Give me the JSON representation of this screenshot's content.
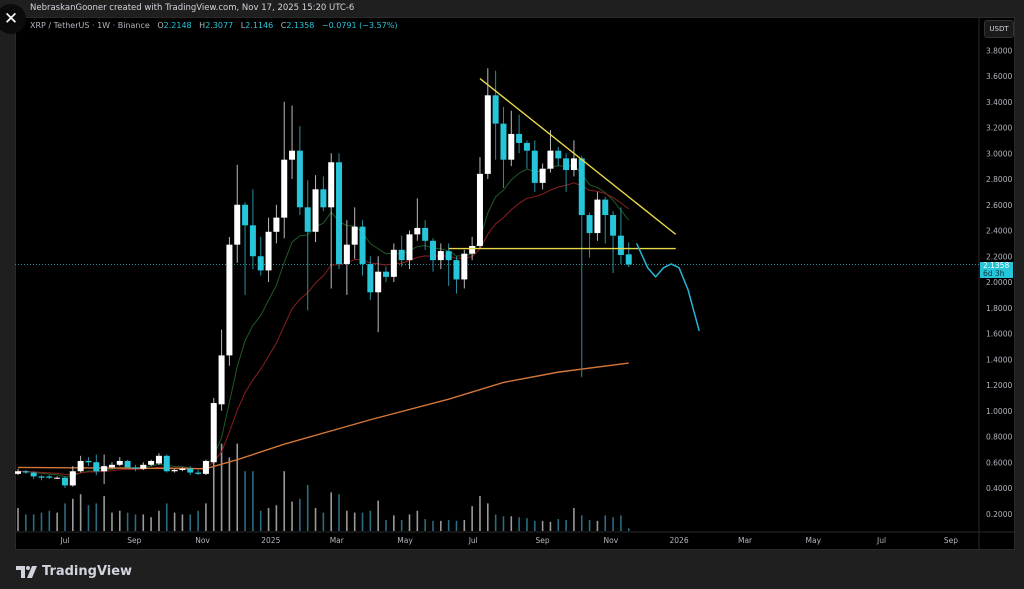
{
  "header": {
    "credit": "NebraskanGooner created with TradingView.com, Nov 17, 2025 15:20 UTC-6",
    "close_icon": "close-icon"
  },
  "legend": {
    "symbol": "XRP / TetherUS · 1W · Binance",
    "o_label": "O",
    "o": "2.2148",
    "h_label": "H",
    "h": "2.3077",
    "l_label": "L",
    "l": "2.1146",
    "c_label": "C",
    "c": "2.1358",
    "change": "−0.0791 (−3.57%)"
  },
  "price_axis": {
    "currency_button": "USDT",
    "last_price": "2.1358",
    "countdown": "6d 3h"
  },
  "footer": {
    "brand": "TradingView"
  },
  "colors": {
    "up": "#ffffff",
    "down": "#26c6da",
    "ema_fast": "#1e5a26",
    "ema_slow": "#8a1f1f",
    "ma_long": "#d2763a",
    "trendline": "#e6d84a",
    "projection": "#26b5d6",
    "volume_up": "#9a9a9a",
    "volume_down": "#2c6b80"
  },
  "chart_data": {
    "type": "candlestick",
    "symbol": "XRP / TetherUS",
    "interval": "1W",
    "ylim": [
      0.1,
      3.9
    ],
    "y_ticks": [
      "3.8000",
      "3.6000",
      "3.4000",
      "3.2000",
      "3.0000",
      "2.8000",
      "2.6000",
      "2.4000",
      "2.2000",
      "2.0000",
      "1.8000",
      "1.6000",
      "1.4000",
      "1.2000",
      "1.0000",
      "0.8000",
      "0.6000",
      "0.4000",
      "0.2000"
    ],
    "x_ticks": [
      {
        "label": "Jul",
        "date": "2024-07-01"
      },
      {
        "label": "Sep",
        "date": "2024-09-01"
      },
      {
        "label": "Nov",
        "date": "2024-11-01"
      },
      {
        "label": "2025",
        "date": "2025-01-01"
      },
      {
        "label": "Mar",
        "date": "2025-03-01"
      },
      {
        "label": "May",
        "date": "2025-05-01"
      },
      {
        "label": "Jul",
        "date": "2025-07-01"
      },
      {
        "label": "Sep",
        "date": "2025-09-01"
      },
      {
        "label": "Nov",
        "date": "2025-11-01"
      },
      {
        "label": "2026",
        "date": "2026-01-01"
      },
      {
        "label": "Mar",
        "date": "2026-03-01"
      },
      {
        "label": "May",
        "date": "2026-05-01"
      },
      {
        "label": "Jul",
        "date": "2026-07-01"
      },
      {
        "label": "Sep",
        "date": "2026-09-01"
      }
    ],
    "candle_fields": [
      "date",
      "open",
      "high",
      "low",
      "close",
      "volume_relative"
    ],
    "candles": [
      [
        "2024-05-20",
        0.51,
        0.55,
        0.5,
        0.53,
        25
      ],
      [
        "2024-05-27",
        0.53,
        0.54,
        0.51,
        0.52,
        18
      ],
      [
        "2024-06-03",
        0.52,
        0.53,
        0.47,
        0.49,
        18
      ],
      [
        "2024-06-10",
        0.49,
        0.5,
        0.46,
        0.48,
        20
      ],
      [
        "2024-06-17",
        0.49,
        0.5,
        0.47,
        0.48,
        22
      ],
      [
        "2024-06-24",
        0.48,
        0.49,
        0.47,
        0.48,
        20
      ],
      [
        "2024-07-01",
        0.48,
        0.49,
        0.4,
        0.42,
        30
      ],
      [
        "2024-07-08",
        0.42,
        0.57,
        0.41,
        0.53,
        35
      ],
      [
        "2024-07-15",
        0.53,
        0.65,
        0.52,
        0.61,
        40
      ],
      [
        "2024-07-22",
        0.61,
        0.64,
        0.57,
        0.6,
        28
      ],
      [
        "2024-07-29",
        0.6,
        0.66,
        0.5,
        0.53,
        30
      ],
      [
        "2024-08-05",
        0.53,
        0.66,
        0.43,
        0.57,
        38
      ],
      [
        "2024-08-12",
        0.56,
        0.6,
        0.55,
        0.58,
        20
      ],
      [
        "2024-08-19",
        0.58,
        0.64,
        0.57,
        0.61,
        22
      ],
      [
        "2024-08-26",
        0.61,
        0.62,
        0.55,
        0.56,
        20
      ],
      [
        "2024-09-02",
        0.56,
        0.58,
        0.53,
        0.55,
        18
      ],
      [
        "2024-09-09",
        0.55,
        0.6,
        0.54,
        0.58,
        18
      ],
      [
        "2024-09-16",
        0.58,
        0.62,
        0.57,
        0.61,
        15
      ],
      [
        "2024-09-23",
        0.59,
        0.67,
        0.58,
        0.65,
        22
      ],
      [
        "2024-09-30",
        0.65,
        0.66,
        0.52,
        0.53,
        30
      ],
      [
        "2024-10-07",
        0.53,
        0.55,
        0.52,
        0.54,
        20
      ],
      [
        "2024-10-14",
        0.54,
        0.56,
        0.53,
        0.55,
        18
      ],
      [
        "2024-10-21",
        0.55,
        0.57,
        0.5,
        0.52,
        18
      ],
      [
        "2024-10-28",
        0.52,
        0.54,
        0.5,
        0.51,
        22
      ],
      [
        "2024-11-04",
        0.51,
        0.62,
        0.5,
        0.61,
        30
      ],
      [
        "2024-11-11",
        0.6,
        1.1,
        0.59,
        1.06,
        100
      ],
      [
        "2024-11-18",
        1.05,
        1.63,
        1.0,
        1.43,
        95
      ],
      [
        "2024-11-25",
        1.43,
        2.35,
        1.35,
        2.29,
        80
      ],
      [
        "2024-12-02",
        2.29,
        2.91,
        2.15,
        2.6,
        95
      ],
      [
        "2024-12-09",
        2.6,
        2.62,
        1.9,
        2.44,
        65
      ],
      [
        "2024-12-16",
        2.44,
        2.72,
        2.1,
        2.2,
        65
      ],
      [
        "2024-12-23",
        2.2,
        2.35,
        2.05,
        2.09,
        22
      ],
      [
        "2024-12-30",
        2.09,
        2.5,
        2.0,
        2.39,
        25
      ],
      [
        "2025-01-06",
        2.39,
        2.6,
        2.3,
        2.5,
        28
      ],
      [
        "2025-01-13",
        2.5,
        3.4,
        2.34,
        2.95,
        65
      ],
      [
        "2025-01-20",
        2.95,
        3.37,
        2.8,
        3.02,
        32
      ],
      [
        "2025-01-27",
        3.02,
        3.21,
        2.52,
        2.58,
        35
      ],
      [
        "2025-02-03",
        2.58,
        2.79,
        1.78,
        2.39,
        50
      ],
      [
        "2025-02-10",
        2.39,
        2.83,
        2.31,
        2.72,
        25
      ],
      [
        "2025-02-17",
        2.72,
        2.82,
        2.55,
        2.58,
        20
      ],
      [
        "2025-02-24",
        2.58,
        3.0,
        1.95,
        2.93,
        42
      ],
      [
        "2025-03-03",
        2.93,
        3.0,
        2.1,
        2.14,
        40
      ],
      [
        "2025-03-10",
        2.14,
        2.48,
        1.9,
        2.29,
        22
      ],
      [
        "2025-03-17",
        2.29,
        2.58,
        2.18,
        2.43,
        20
      ],
      [
        "2025-03-24",
        2.43,
        2.48,
        2.05,
        2.14,
        20
      ],
      [
        "2025-03-31",
        2.14,
        2.2,
        1.86,
        1.92,
        22
      ],
      [
        "2025-04-07",
        1.92,
        2.2,
        1.61,
        2.08,
        33
      ],
      [
        "2025-04-14",
        2.08,
        2.12,
        2.0,
        2.04,
        12
      ],
      [
        "2025-04-21",
        2.04,
        2.3,
        2.0,
        2.25,
        17
      ],
      [
        "2025-04-28",
        2.25,
        2.36,
        2.12,
        2.17,
        12
      ],
      [
        "2025-05-05",
        2.17,
        2.4,
        2.1,
        2.37,
        18
      ],
      [
        "2025-05-12",
        2.37,
        2.65,
        2.32,
        2.42,
        22
      ],
      [
        "2025-05-19",
        2.42,
        2.48,
        2.25,
        2.32,
        13
      ],
      [
        "2025-05-26",
        2.32,
        2.34,
        2.08,
        2.17,
        11
      ],
      [
        "2025-06-02",
        2.17,
        2.3,
        2.1,
        2.24,
        11
      ],
      [
        "2025-06-09",
        2.24,
        2.3,
        1.97,
        2.17,
        12
      ],
      [
        "2025-06-16",
        2.17,
        2.2,
        1.91,
        2.02,
        11
      ],
      [
        "2025-06-23",
        2.02,
        2.25,
        1.95,
        2.22,
        12
      ],
      [
        "2025-06-30",
        2.22,
        2.35,
        2.17,
        2.28,
        27
      ],
      [
        "2025-07-07",
        2.28,
        2.97,
        2.26,
        2.84,
        38
      ],
      [
        "2025-07-14",
        2.84,
        3.66,
        2.8,
        3.45,
        30
      ],
      [
        "2025-07-21",
        3.45,
        3.64,
        2.95,
        3.23,
        18
      ],
      [
        "2025-07-28",
        3.23,
        3.36,
        2.73,
        2.95,
        16
      ],
      [
        "2025-08-04",
        2.95,
        3.33,
        2.9,
        3.15,
        16
      ],
      [
        "2025-08-11",
        3.15,
        3.3,
        3.0,
        3.08,
        15
      ],
      [
        "2025-08-18",
        3.08,
        3.1,
        2.88,
        3.02,
        14
      ],
      [
        "2025-08-25",
        3.02,
        3.1,
        2.7,
        2.77,
        11
      ],
      [
        "2025-09-01",
        2.77,
        2.92,
        2.72,
        2.88,
        11
      ],
      [
        "2025-09-08",
        2.88,
        3.18,
        2.85,
        3.02,
        10
      ],
      [
        "2025-09-15",
        3.02,
        3.05,
        2.9,
        2.96,
        13
      ],
      [
        "2025-09-22",
        2.96,
        3.0,
        2.7,
        2.87,
        12
      ],
      [
        "2025-09-29",
        2.87,
        3.1,
        2.82,
        2.96,
        25
      ],
      [
        "2025-10-06",
        2.96,
        2.98,
        1.26,
        2.52,
        17
      ],
      [
        "2025-10-13",
        2.52,
        2.54,
        2.19,
        2.38,
        12
      ],
      [
        "2025-10-20",
        2.38,
        2.7,
        2.32,
        2.64,
        11
      ],
      [
        "2025-10-27",
        2.64,
        2.66,
        2.3,
        2.52,
        17
      ],
      [
        "2025-11-03",
        2.52,
        2.55,
        2.07,
        2.36,
        15
      ],
      [
        "2025-11-10",
        2.36,
        2.58,
        2.14,
        2.21,
        17
      ],
      [
        "2025-11-17",
        2.2148,
        2.3077,
        2.1146,
        2.1358,
        3
      ]
    ],
    "moving_averages": [
      {
        "kind": "ema_fast",
        "period": 10
      },
      {
        "kind": "ema_slow",
        "period": 20
      },
      {
        "kind": "ma_long",
        "points": [
          [
            "2024-05-20",
            0.56
          ],
          [
            "2024-11-04",
            0.55
          ],
          [
            "2024-12-02",
            0.62
          ],
          [
            "2025-01-13",
            0.74
          ],
          [
            "2025-03-31",
            0.93
          ],
          [
            "2025-06-09",
            1.09
          ],
          [
            "2025-07-28",
            1.22
          ],
          [
            "2025-09-15",
            1.3
          ],
          [
            "2025-11-17",
            1.37
          ]
        ]
      }
    ],
    "drawings": [
      {
        "kind": "trendline",
        "from": [
          "2025-07-07",
          3.58
        ],
        "to": [
          "2025-12-29",
          2.37
        ]
      },
      {
        "kind": "horizontal",
        "from": [
          "2025-06-09",
          2.26
        ],
        "to": [
          "2025-12-29",
          2.26
        ]
      },
      {
        "kind": "projection",
        "points": [
          [
            "2025-11-24",
            2.3
          ],
          [
            "2025-12-04",
            2.11
          ],
          [
            "2025-12-11",
            2.04
          ],
          [
            "2025-12-18",
            2.11
          ],
          [
            "2025-12-25",
            2.14
          ],
          [
            "2026-01-01",
            2.11
          ],
          [
            "2026-01-09",
            1.94
          ],
          [
            "2026-01-19",
            1.62
          ]
        ]
      }
    ],
    "last_price_line": 2.1358
  }
}
